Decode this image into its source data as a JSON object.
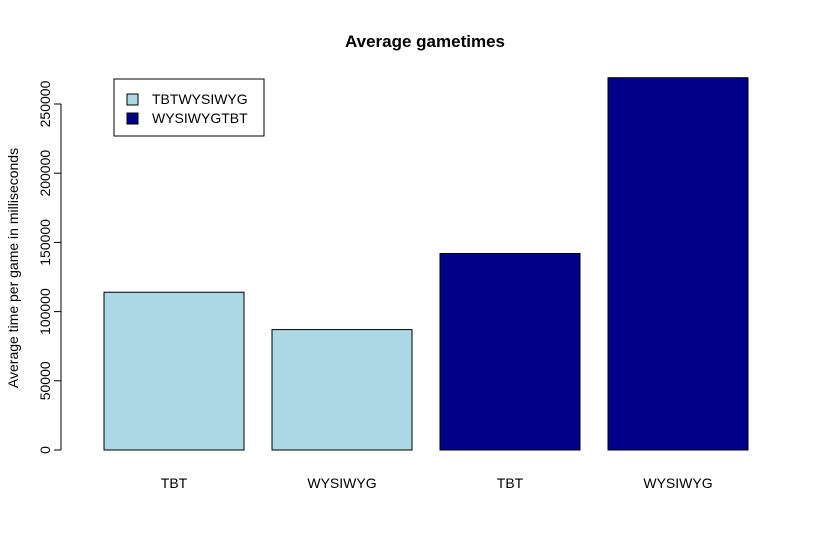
{
  "chart_data": {
    "type": "bar",
    "title": "Average gametimes",
    "xlabel": "",
    "ylabel": "Average time per game in milliseconds",
    "ylim": [
      0,
      270000
    ],
    "yticks": [
      0,
      50000,
      100000,
      150000,
      200000,
      250000
    ],
    "ytick_labels": [
      "0",
      "50000",
      "100000",
      "150000",
      "200000",
      "250000"
    ],
    "grid": false,
    "bars": [
      {
        "label": "TBT",
        "value": 114000,
        "series": "TBTWYSIWYG"
      },
      {
        "label": "WYSIWYG",
        "value": 87000,
        "series": "TBTWYSIWYG"
      },
      {
        "label": "TBT",
        "value": 142000,
        "series": "WYSIWYGTBT"
      },
      {
        "label": "WYSIWYG",
        "value": 269000,
        "series": "WYSIWYGTBT"
      }
    ],
    "legend": {
      "placement": "top-left",
      "entries": [
        {
          "name": "TBTWYSIWYG",
          "color": "#add8e6"
        },
        {
          "name": "WYSIWYGTBT",
          "color": "#00008b"
        }
      ]
    }
  }
}
